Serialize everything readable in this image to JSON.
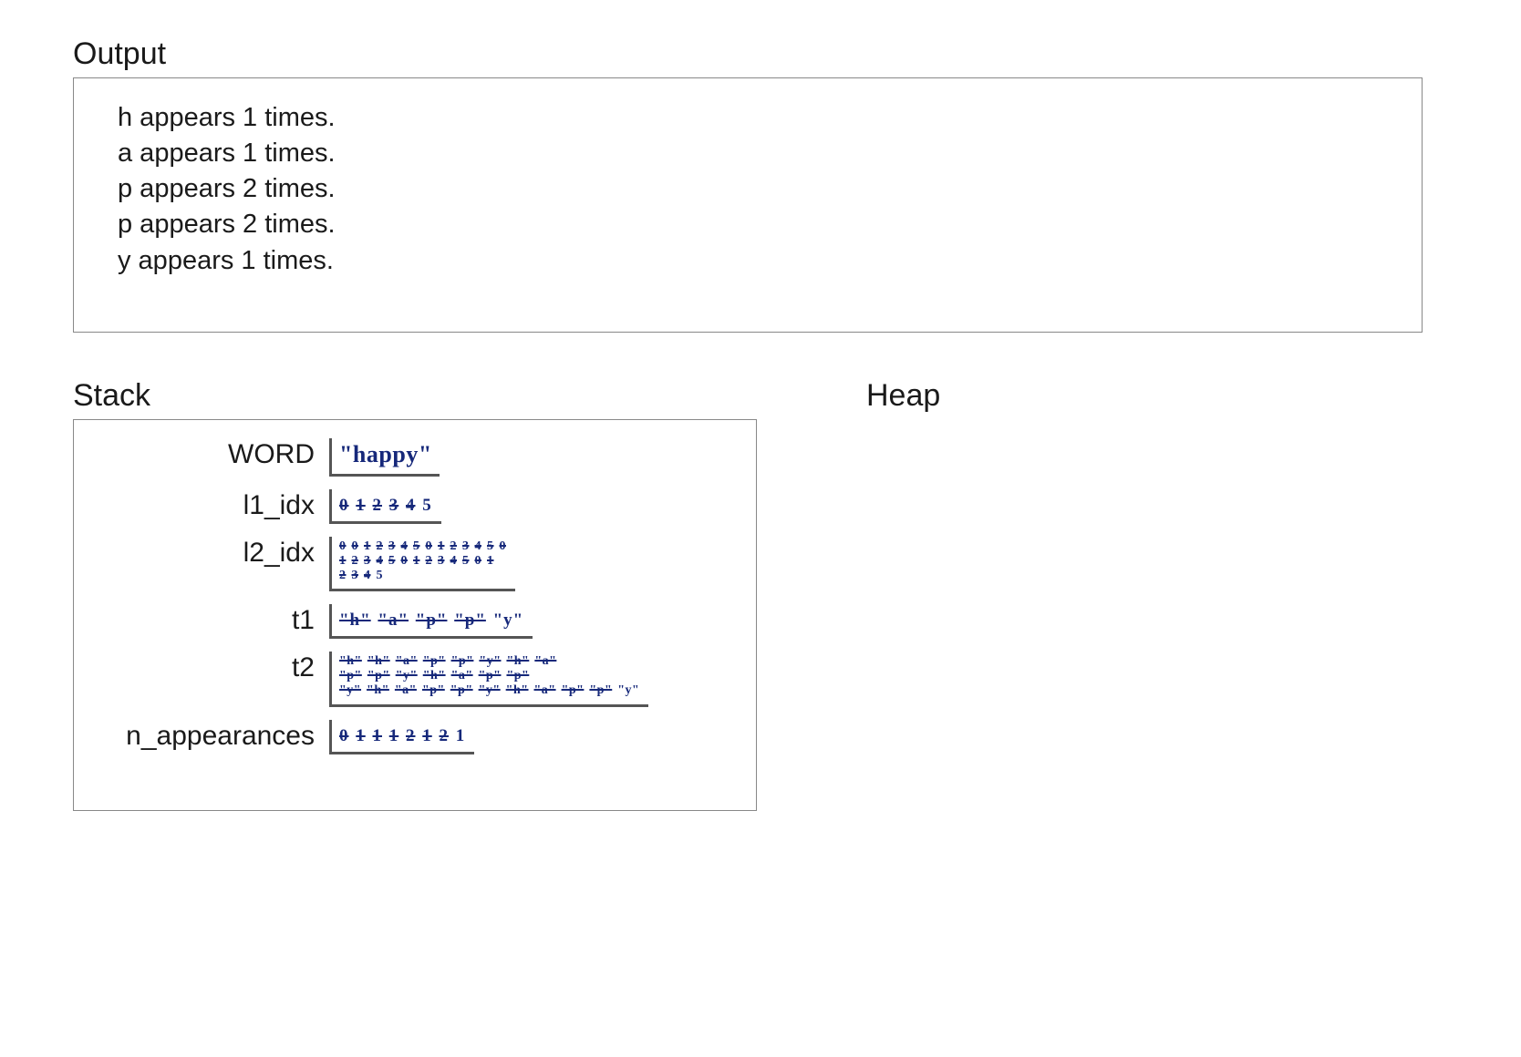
{
  "labels": {
    "output": "Output",
    "stack": "Stack",
    "heap": "Heap"
  },
  "output_lines": [
    "h appears 1 times.",
    "a appears 1 times.",
    "p appears 2 times.",
    "p appears 2 times.",
    "y appears 1 times."
  ],
  "stack": {
    "vars": [
      {
        "name": "WORD",
        "value": "\"happy\"",
        "style": "hand-lg"
      },
      {
        "name": "l1_idx",
        "value_struck": [
          "0",
          "1",
          "2",
          "3",
          "4"
        ],
        "value_final": "5",
        "style": "hand-md"
      },
      {
        "name": "l2_idx",
        "lines": [
          {
            "struck": [
              "0",
              "0",
              "1",
              "2",
              "3",
              "4",
              "5",
              "0",
              "1",
              "2",
              "3",
              "4",
              "5",
              "0"
            ],
            "final": ""
          },
          {
            "struck": [
              "1",
              "2",
              "3",
              "4",
              "5",
              "0",
              "1",
              "2",
              "3",
              "4",
              "5",
              "0",
              "1"
            ],
            "final": ""
          },
          {
            "struck": [
              "2",
              "3",
              "4"
            ],
            "final": "5"
          }
        ],
        "style": "hand-sm"
      },
      {
        "name": "t1",
        "value_struck": [
          "\"h\"",
          "\"a\"",
          "\"p\"",
          "\"p\""
        ],
        "value_final": "\"y\"",
        "style": "hand-md"
      },
      {
        "name": "t2",
        "lines": [
          {
            "struck": [
              "\"h\"",
              "\"h\"",
              "\"a\"",
              "\"p\"",
              "\"p\"",
              "\"y\"",
              "\"h\"",
              "\"a\""
            ],
            "final": ""
          },
          {
            "struck": [
              "\"p\"",
              "\"p\"",
              "\"y\"",
              "\"h\"",
              "\"a\"",
              "\"p\"",
              "\"p\""
            ],
            "final": ""
          },
          {
            "struck": [
              "\"y\"",
              "\"h\"",
              "\"a\"",
              "\"p\"",
              "\"p\"",
              "\"y\"",
              "\"h\"",
              "\"a\"",
              "\"p\"",
              "\"p\""
            ],
            "final": "\"y\""
          }
        ],
        "style": "hand-sm"
      },
      {
        "name": "n_appearances",
        "value_struck": [
          "0",
          "1",
          "1",
          "1",
          "2",
          "1",
          "2"
        ],
        "value_final": "1",
        "style": "hand-md"
      }
    ]
  },
  "colors": {
    "ink": "#16287a",
    "text": "#1a1a1a",
    "border": "#888888",
    "background": "#ffffff"
  }
}
